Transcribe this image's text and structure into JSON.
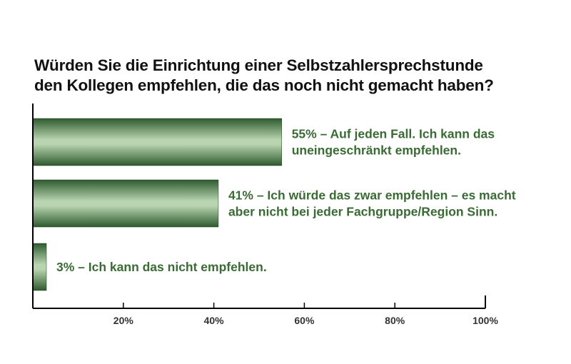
{
  "chart_data": {
    "type": "bar",
    "orientation": "horizontal",
    "title_lines": [
      "Würden Sie die Einrichtung einer Selbstzahlersprechstunde",
      "den Kollegen empfehlen, die das noch nicht gemacht haben?"
    ],
    "xlim": [
      0,
      100
    ],
    "ticks": [
      {
        "value": 20,
        "label": "20%"
      },
      {
        "value": 40,
        "label": "40%"
      },
      {
        "value": 60,
        "label": "60%"
      },
      {
        "value": 80,
        "label": "80%"
      },
      {
        "value": 100,
        "label": "100%"
      }
    ],
    "bars": [
      {
        "value": 55,
        "label_lines": [
          "55% – Auf jeden Fall. Ich kann das",
          "uneingeschränkt empfehlen."
        ]
      },
      {
        "value": 41,
        "label_lines": [
          "41% – Ich würde das zwar empfehlen – es macht",
          "aber nicht bei jeder Fachgruppe/Region Sinn."
        ]
      },
      {
        "value": 3,
        "label_lines": [
          "3% – Ich kann das nicht empfehlen."
        ]
      }
    ],
    "colors": {
      "bar_dark": "#2e5a2e",
      "bar_light": "#b8d4b0",
      "label": "#3a6b35",
      "axis": "#000000"
    }
  }
}
